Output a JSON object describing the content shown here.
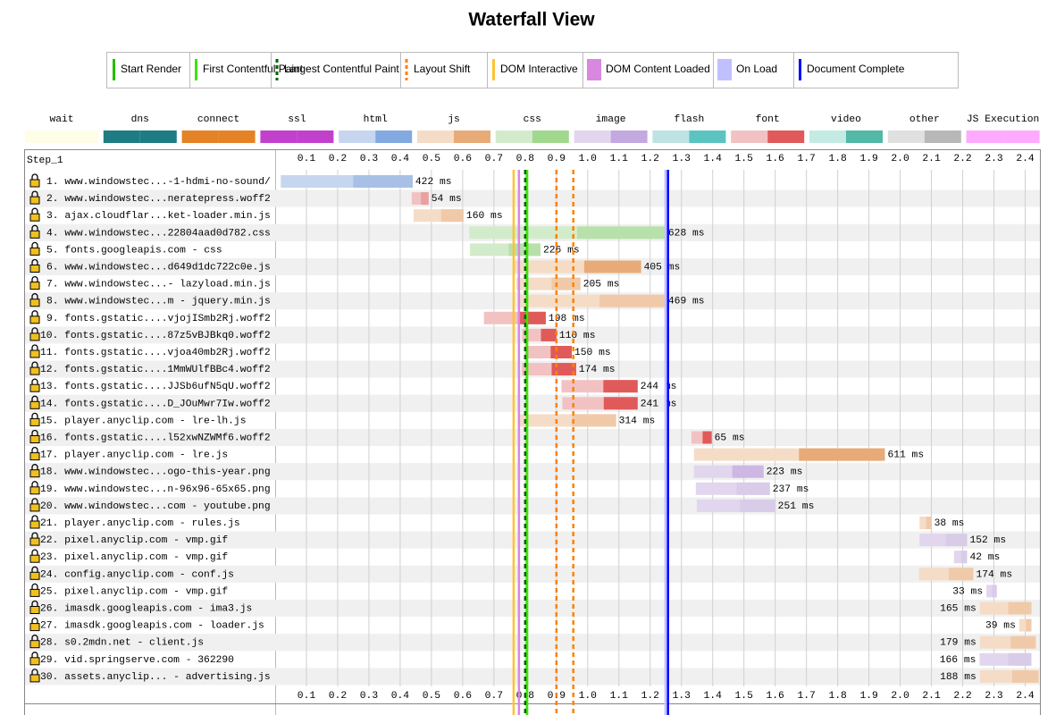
{
  "chart_data": {
    "type": "waterfall",
    "title": "Waterfall View",
    "step": "Step_1",
    "xlim": [
      0,
      2.45
    ],
    "xticks": [
      0.1,
      0.2,
      0.3,
      0.4,
      0.5,
      0.6,
      0.7,
      0.8,
      0.9,
      {
        "value": 1,
        "label": "1.0"
      },
      1.1,
      1.2,
      1.3,
      1.4,
      1.5,
      1.6,
      1.7,
      1.8,
      1.9,
      {
        "value": 2,
        "label": "2.0"
      },
      2.1,
      2.2,
      2.3,
      2.4
    ],
    "events": [
      {
        "name": "Start Render",
        "color": "#28bc00",
        "dashed": false,
        "times": [
          0.806
        ]
      },
      {
        "name": "First Contentful Paint",
        "color": "#39e600",
        "dashed": false,
        "times": [
          0.806
        ]
      },
      {
        "name": "Largest Contentful Paint",
        "color": "#006400",
        "dashed": true,
        "times": [
          0.8
        ]
      },
      {
        "name": "Layout Shift",
        "color": "#ff8000",
        "dashed": true,
        "times": [
          0.9,
          0.954
        ]
      },
      {
        "name": "DOM Interactive",
        "color": "#ffc233",
        "dashed": false,
        "times": [
          0.763
        ]
      },
      {
        "name": "DOM Content Loaded",
        "color": "#d888df",
        "dashed": false,
        "times": [
          0.78
        ]
      },
      {
        "name": "On Load",
        "color": "#c0c0ff",
        "dashed": false,
        "times": [
          1.249
        ]
      },
      {
        "name": "Document Complete",
        "color": "#0000ff",
        "dashed": false,
        "times": [
          1.257
        ]
      }
    ],
    "resource_types": [
      {
        "name": "wait",
        "colors": [
          "#fefee6",
          "#fefee6"
        ]
      },
      {
        "name": "dns",
        "colors": [
          "#1f7c83",
          "#1f7c83"
        ]
      },
      {
        "name": "connect",
        "colors": [
          "#e58226",
          "#e58226"
        ]
      },
      {
        "name": "ssl",
        "colors": [
          "#c141cd",
          "#c141cd"
        ]
      },
      {
        "name": "html",
        "colors": [
          "#c6d6ee",
          "#82a9e0"
        ]
      },
      {
        "name": "js",
        "colors": [
          "#f5dcc6",
          "#e8ab78"
        ]
      },
      {
        "name": "css",
        "colors": [
          "#d2eccb",
          "#a0d88e"
        ]
      },
      {
        "name": "image",
        "colors": [
          "#e2d6ee",
          "#c4a8e0"
        ]
      },
      {
        "name": "flash",
        "colors": [
          "#bfe3e3",
          "#5bc4c0"
        ]
      },
      {
        "name": "font",
        "colors": [
          "#f2c2c2",
          "#e05a5a"
        ]
      },
      {
        "name": "video",
        "colors": [
          "#c4ebe3",
          "#52b8a8"
        ]
      },
      {
        "name": "other",
        "colors": [
          "#e0e0e0",
          "#b8b8b8"
        ]
      },
      {
        "name": "JS Execution",
        "colors": [
          "#ffaaff",
          "#ffaaff"
        ]
      }
    ],
    "requests": {
      "labels": [
        "1. www.windowstec...-1-hdmi-no-sound/",
        "2. www.windowstec...neratepress.woff2",
        "3. ajax.cloudflar...ket-loader.min.js",
        "4. www.windowstec...22804aad0d782.css",
        "5. fonts.googleapis.com - css",
        "6. www.windowstec...d649d1dc722c0e.js",
        "7. www.windowstec...- lazyload.min.js",
        "8. www.windowstec...m - jquery.min.js",
        "9. fonts.gstatic....vjojISmb2Rj.woff2",
        "10. fonts.gstatic....87z5vBJBkq0.woff2",
        "11. fonts.gstatic....vjoa40mb2Rj.woff2",
        "12. fonts.gstatic....1MmWUlfBBc4.woff2",
        "13. fonts.gstatic....JJSb6ufN5qU.woff2",
        "14. fonts.gstatic....D_JOuMwr7Iw.woff2",
        "15. player.anyclip.com - lre-lh.js",
        "16. fonts.gstatic....l52xwNZWMf6.woff2",
        "17. player.anyclip.com - lre.js",
        "18. www.windowstec...ogo-this-year.png",
        "19. www.windowstec...n-96x96-65x65.png",
        "20. www.windowstec...com - youtube.png",
        "21. player.anyclip.com - rules.js",
        "22. pixel.anyclip.com - vmp.gif",
        "23. pixel.anyclip.com - vmp.gif",
        "24. config.anyclip.com - conf.js",
        "25. pixel.anyclip.com - vmp.gif",
        "26. imasdk.googleapis.com - ima3.js",
        "27. imasdk.googleapis.com - loader.js",
        "28. s0.2mdn.net - client.js",
        "29. vid.springserve.com - 362290",
        "30. assets.anyclip... - advertising.js"
      ],
      "starts": [
        0.018,
        0.437,
        0.443,
        0.621,
        0.623,
        0.766,
        0.772,
        0.78,
        0.668,
        0.79,
        0.799,
        0.789,
        0.916,
        0.919,
        0.777,
        1.332,
        1.34,
        1.34,
        1.346,
        1.349,
        2.062,
        2.062,
        2.172,
        2.06,
        2.276,
        2.255,
        2.381,
        2.255,
        2.254,
        2.255
      ],
      "values": [
        0.422,
        0.054,
        0.16,
        0.628,
        0.226,
        0.405,
        0.205,
        0.469,
        0.198,
        0.11,
        0.15,
        0.174,
        0.244,
        0.241,
        0.314,
        0.065,
        0.611,
        0.223,
        0.237,
        0.251,
        0.038,
        0.152,
        0.042,
        0.174,
        0.033,
        0.165,
        0.039,
        0.179,
        0.166,
        0.188
      ],
      "value_labels": [
        "422 ms",
        "54 ms",
        "160 ms",
        "628 ms",
        "226 ms",
        "405 ms",
        "205 ms",
        "469 ms",
        "198 ms",
        "110 ms",
        "150 ms",
        "174 ms",
        "244 ms",
        "241 ms",
        "314 ms",
        "65 ms",
        "611 ms",
        "223 ms",
        "237 ms",
        "251 ms",
        "38 ms",
        "152 ms",
        "42 ms",
        "174 ms",
        "33 ms",
        "165 ms",
        "39 ms",
        "179 ms",
        "166 ms",
        "188 ms"
      ],
      "colors": [
        [
          "#c6d6ee",
          "#a8c0e6"
        ],
        [
          "#f2c2c2",
          "#e8a0a0"
        ],
        [
          "#f5dcc6",
          "#f0caa8"
        ],
        [
          "#d2eccb",
          "#b8e0aa"
        ],
        [
          "#d2eccb",
          "#b8e0aa"
        ],
        [
          "#f5dcc6",
          "#e8ab78"
        ],
        [
          "#f5dcc6",
          "#f0caa8"
        ],
        [
          "#f5dcc6",
          "#f0caa8"
        ],
        [
          "#f2c2c2",
          "#e05a5a"
        ],
        [
          "#f2c2c2",
          "#e05a5a"
        ],
        [
          "#f2c2c2",
          "#e05a5a"
        ],
        [
          "#f2c2c2",
          "#e05a5a"
        ],
        [
          "#f2c2c2",
          "#e05a5a"
        ],
        [
          "#f2c2c2",
          "#e05a5a"
        ],
        [
          "#f5dcc6",
          "#f0caa8"
        ],
        [
          "#f2c2c2",
          "#e05a5a"
        ],
        [
          "#f5dcc6",
          "#e8ab78"
        ],
        [
          "#e2d6ee",
          "#cdb8e4"
        ],
        [
          "#e2d6ee",
          "#d8cce8"
        ],
        [
          "#e2d6ee",
          "#d8cce8"
        ],
        [
          "#f5dcc6",
          "#f0caa8"
        ],
        [
          "#e2d6ee",
          "#d8cce8"
        ],
        [
          "#e2d6ee",
          "#d8cce8"
        ],
        [
          "#f5dcc6",
          "#f0caa8"
        ],
        [
          "#e2d6ee",
          "#d8cce8"
        ],
        [
          "#f5dcc6",
          "#f0caa8"
        ],
        [
          "#f5dcc6",
          "#f0caa8"
        ],
        [
          "#f5dcc6",
          "#f0caa8"
        ],
        [
          "#e2d6ee",
          "#d8cce8"
        ],
        [
          "#f5dcc6",
          "#f0caa8"
        ]
      ]
    }
  }
}
